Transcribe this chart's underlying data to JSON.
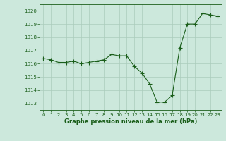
{
  "x": [
    0,
    1,
    2,
    3,
    4,
    5,
    6,
    7,
    8,
    9,
    10,
    11,
    12,
    13,
    14,
    15,
    16,
    17,
    18,
    19,
    20,
    21,
    22,
    23
  ],
  "y": [
    1016.4,
    1016.3,
    1016.1,
    1016.1,
    1016.2,
    1016.0,
    1016.1,
    1016.2,
    1016.3,
    1016.7,
    1016.6,
    1016.6,
    1015.8,
    1015.3,
    1014.5,
    1013.1,
    1013.1,
    1013.6,
    1017.2,
    1019.0,
    1019.0,
    1019.8,
    1019.7,
    1019.6
  ],
  "line_color": "#1a5e1a",
  "marker_color": "#1a5e1a",
  "bg_color": "#cce8dc",
  "grid_color": "#aaccbb",
  "xlabel": "Graphe pression niveau de la mer (hPa)",
  "xlabel_color": "#1a5e1a",
  "tick_color": "#1a5e1a",
  "ylim": [
    1012.5,
    1020.5
  ],
  "xlim": [
    -0.5,
    23.5
  ],
  "yticks": [
    1013,
    1014,
    1015,
    1016,
    1017,
    1018,
    1019,
    1020
  ],
  "xticks": [
    0,
    1,
    2,
    3,
    4,
    5,
    6,
    7,
    8,
    9,
    10,
    11,
    12,
    13,
    14,
    15,
    16,
    17,
    18,
    19,
    20,
    21,
    22,
    23
  ],
  "tick_fontsize": 5,
  "xlabel_fontsize": 6,
  "marker_size": 2,
  "linewidth": 0.8
}
